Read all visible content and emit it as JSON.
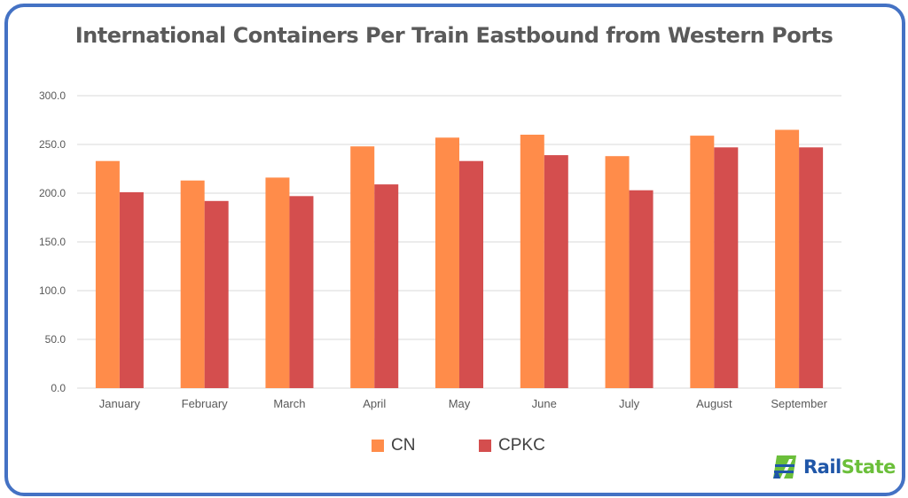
{
  "chart_data": {
    "type": "bar",
    "title": "International Containers Per Train Eastbound from Western Ports",
    "categories": [
      "January",
      "February",
      "March",
      "April",
      "May",
      "June",
      "July",
      "August",
      "September"
    ],
    "series": [
      {
        "name": "CN",
        "color": "#ff8c4a",
        "values": [
          233,
          213,
          216,
          248,
          257,
          260,
          238,
          259,
          265
        ]
      },
      {
        "name": "CPKC",
        "color": "#d44e4e",
        "values": [
          201,
          192,
          197,
          209,
          233,
          239,
          203,
          247,
          247
        ]
      }
    ],
    "ylim": [
      0,
      300
    ],
    "yticks": [
      "0.0",
      "50.0",
      "100.0",
      "150.0",
      "200.0",
      "250.0",
      "300.0"
    ],
    "grid": true,
    "legend_position": "bottom"
  },
  "logo": {
    "rail": "Rail",
    "state": "State",
    "rail_color": "#1f56a8",
    "state_color": "#6bbf3a"
  },
  "colors": {
    "frame": "#4472c4",
    "grid": "#d9d9d9",
    "tick_text": "#595959"
  }
}
